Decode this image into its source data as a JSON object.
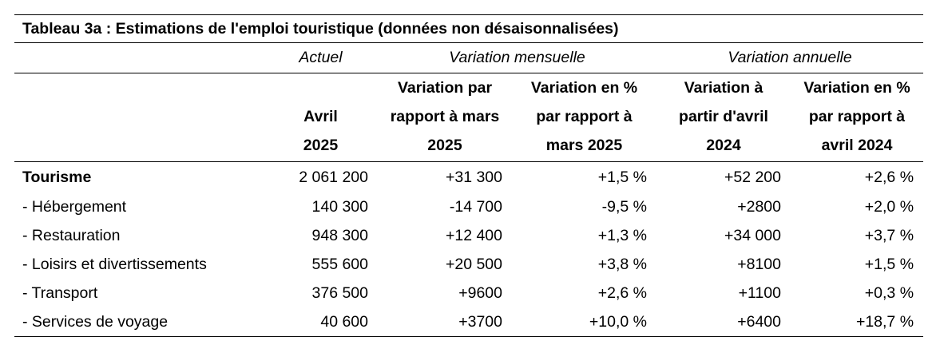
{
  "table": {
    "title": "Tableau 3a : Estimations de l'emploi touristique (données non désaisonnalisées)",
    "groups": {
      "actual": "Actuel",
      "monthly": "Variation mensuelle",
      "annual": "Variation annuelle"
    },
    "headers": [
      "Avril 2025",
      "Variation par rapport à mars 2025",
      "Variation en % par rapport à mars 2025",
      "Variation à partir d'avril 2024",
      "Variation en % par rapport à avril 2024"
    ],
    "rows": [
      {
        "label": "Tourisme",
        "actual": "2 061 200",
        "m_var": "+31 300",
        "m_pct": "+1,5 %",
        "a_var": "+52 200",
        "a_pct": "+2,6 %"
      },
      {
        "label": "- Hébergement",
        "actual": "140 300",
        "m_var": "-14 700",
        "m_pct": "-9,5 %",
        "a_var": "+2800",
        "a_pct": "+2,0 %"
      },
      {
        "label": "- Restauration",
        "actual": "948 300",
        "m_var": "+12 400",
        "m_pct": "+1,3 %",
        "a_var": "+34 000",
        "a_pct": "+3,7 %"
      },
      {
        "label": "- Loisirs et divertissements",
        "actual": "555 600",
        "m_var": "+20 500",
        "m_pct": "+3,8 %",
        "a_var": "+8100",
        "a_pct": "+1,5 %"
      },
      {
        "label": "- Transport",
        "actual": "376 500",
        "m_var": "+9600",
        "m_pct": "+2,6 %",
        "a_var": "+1100",
        "a_pct": "+0,3 %"
      },
      {
        "label": "- Services de voyage",
        "actual": "40 600",
        "m_var": "+3700",
        "m_pct": "+10,0 %",
        "a_var": "+6400",
        "a_pct": "+18,7 %"
      }
    ]
  }
}
